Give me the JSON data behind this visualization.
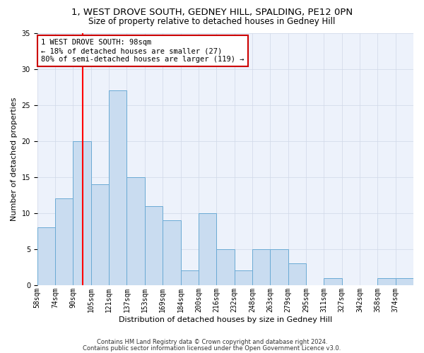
{
  "title": "1, WEST DROVE SOUTH, GEDNEY HILL, SPALDING, PE12 0PN",
  "subtitle": "Size of property relative to detached houses in Gedney Hill",
  "xlabel": "Distribution of detached houses by size in Gedney Hill",
  "ylabel": "Number of detached properties",
  "bin_labels": [
    "58sqm",
    "74sqm",
    "90sqm",
    "105sqm",
    "121sqm",
    "137sqm",
    "153sqm",
    "169sqm",
    "184sqm",
    "200sqm",
    "216sqm",
    "232sqm",
    "248sqm",
    "263sqm",
    "279sqm",
    "295sqm",
    "311sqm",
    "327sqm",
    "342sqm",
    "358sqm",
    "374sqm"
  ],
  "bar_heights": [
    8,
    12,
    20,
    14,
    27,
    15,
    11,
    9,
    2,
    10,
    5,
    2,
    5,
    5,
    3,
    0,
    1,
    0,
    0,
    1,
    1
  ],
  "bar_color": "#c9dcf0",
  "bar_edge_color": "#6aaad4",
  "grid_color": "#d0d8e8",
  "bg_color": "#edf2fb",
  "ylim": [
    0,
    35
  ],
  "yticks": [
    0,
    5,
    10,
    15,
    20,
    25,
    30,
    35
  ],
  "annotation_text": "1 WEST DROVE SOUTH: 98sqm\n← 18% of detached houses are smaller (27)\n80% of semi-detached houses are larger (119) →",
  "annotation_box_color": "#ffffff",
  "annotation_box_edge": "#cc0000",
  "footer_line1": "Contains HM Land Registry data © Crown copyright and database right 2024.",
  "footer_line2": "Contains public sector information licensed under the Open Government Licence v3.0.",
  "title_fontsize": 9.5,
  "subtitle_fontsize": 8.5,
  "tick_fontsize": 7,
  "axis_label_fontsize": 8,
  "annotation_fontsize": 7.5,
  "footer_fontsize": 6
}
